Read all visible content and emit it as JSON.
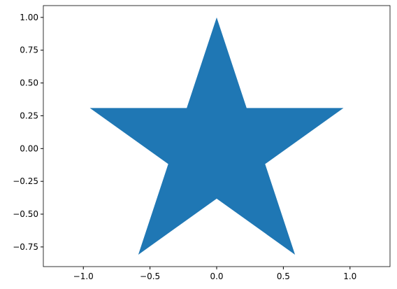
{
  "chart_data": {
    "type": "area",
    "title": "",
    "xlabel": "",
    "ylabel": "",
    "xlim": [
      -1.3,
      1.3
    ],
    "ylim": [
      -0.9,
      1.09
    ],
    "grid": false,
    "xticks": [
      -1.0,
      -0.5,
      0.0,
      0.5,
      1.0
    ],
    "xtick_labels": [
      "−1.0",
      "−0.5",
      "0.0",
      "0.5",
      "1.0"
    ],
    "yticks": [
      -0.75,
      -0.5,
      -0.25,
      0.0,
      0.25,
      0.5,
      0.75,
      1.0
    ],
    "ytick_labels": [
      "−0.75",
      "−0.50",
      "−0.25",
      "0.00",
      "0.25",
      "0.50",
      "0.75",
      "1.00"
    ],
    "series": [
      {
        "shape": "star",
        "color": "#1f77b4",
        "points": [
          {
            "x": 0.0,
            "y": 1.0
          },
          {
            "x": 0.2245,
            "y": 0.309
          },
          {
            "x": 0.9511,
            "y": 0.309
          },
          {
            "x": 0.3633,
            "y": -0.118
          },
          {
            "x": 0.5878,
            "y": -0.809
          },
          {
            "x": 0.0,
            "y": -0.382
          },
          {
            "x": -0.5878,
            "y": -0.809
          },
          {
            "x": -0.3633,
            "y": -0.118
          },
          {
            "x": -0.9511,
            "y": 0.309
          },
          {
            "x": -0.2245,
            "y": 0.309
          }
        ]
      }
    ]
  }
}
